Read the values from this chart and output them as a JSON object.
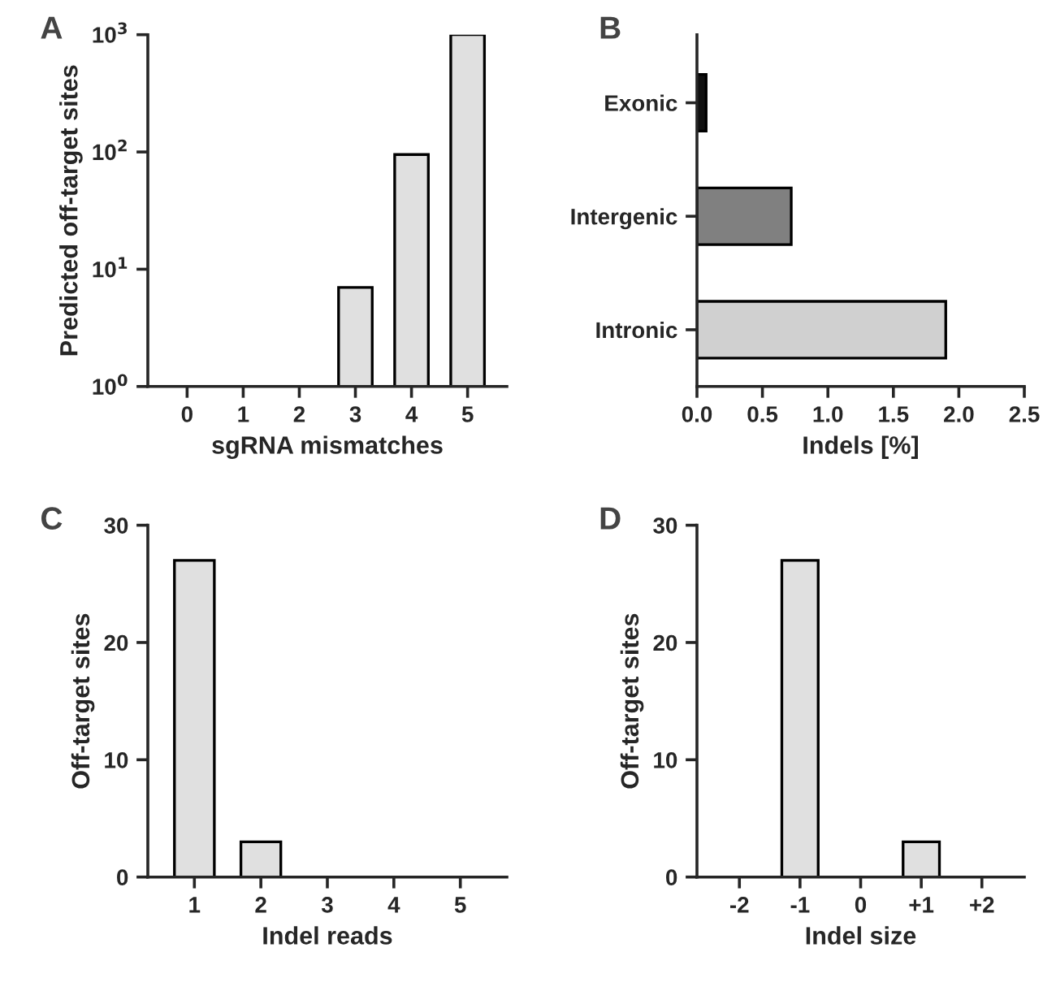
{
  "chart_data": [
    {
      "type": "bar",
      "title": "A",
      "xlabel": "sgRNA mismatches",
      "ylabel": "Predicted off-target sites",
      "categories": [
        "0",
        "1",
        "2",
        "3",
        "4",
        "5"
      ],
      "series": [
        {
          "color": "#e0e0e0",
          "values": [
            null,
            null,
            null,
            7,
            95,
            1000
          ]
        }
      ],
      "log": "y",
      "ylim": [
        1,
        1000
      ],
      "yticks": [
        {
          "value": 1,
          "label": "10$^{0}$"
        },
        {
          "value": 10,
          "label": "10$^{1}$"
        },
        {
          "value": 100,
          "label": "10$^{2}$"
        },
        {
          "value": 1000,
          "label": "10$^{3}$"
        }
      ],
      "grid": false,
      "legend": false
    },
    {
      "type": "bar",
      "title": "B",
      "xlabel": "Indels [%]",
      "orientation": "horizontal",
      "categories": [
        "Exonic",
        "Intergenic",
        "Intronic"
      ],
      "values": [
        0.07,
        0.72,
        1.9
      ],
      "colors": [
        "#111111",
        "#808080",
        "#d0d0d0"
      ],
      "xlim": [
        0,
        2.5
      ],
      "xticks": [
        {
          "value": 0,
          "label": "0.0"
        },
        {
          "value": 0.5,
          "label": "0.5"
        },
        {
          "value": 1,
          "label": "1.0"
        },
        {
          "value": 1.5,
          "label": "1.5"
        },
        {
          "value": 2,
          "label": "2.0"
        },
        {
          "value": 2.5,
          "label": "2.5"
        }
      ],
      "grid": false,
      "legend": false
    },
    {
      "type": "bar",
      "title": "C",
      "xlabel": "Indel reads",
      "ylabel": "Off-target sites",
      "categories": [
        "1",
        "2",
        "3",
        "4",
        "5"
      ],
      "series": [
        {
          "color": "#e0e0e0",
          "values": [
            27,
            3,
            null,
            null,
            null
          ]
        }
      ],
      "ylim": [
        0,
        30
      ],
      "yticks": [
        0,
        10,
        20,
        30
      ],
      "grid": false,
      "legend": false
    },
    {
      "type": "bar",
      "title": "D",
      "xlabel": "Indel size",
      "ylabel": "Off-target sites",
      "categories": [
        "-2",
        "-1",
        "0",
        "+1",
        "+2"
      ],
      "series": [
        {
          "color": "#e0e0e0",
          "values": [
            null,
            27,
            null,
            3,
            null
          ]
        }
      ],
      "ylim": [
        0,
        30
      ],
      "yticks": [
        0,
        10,
        20,
        30
      ],
      "grid": false,
      "legend": false
    }
  ]
}
